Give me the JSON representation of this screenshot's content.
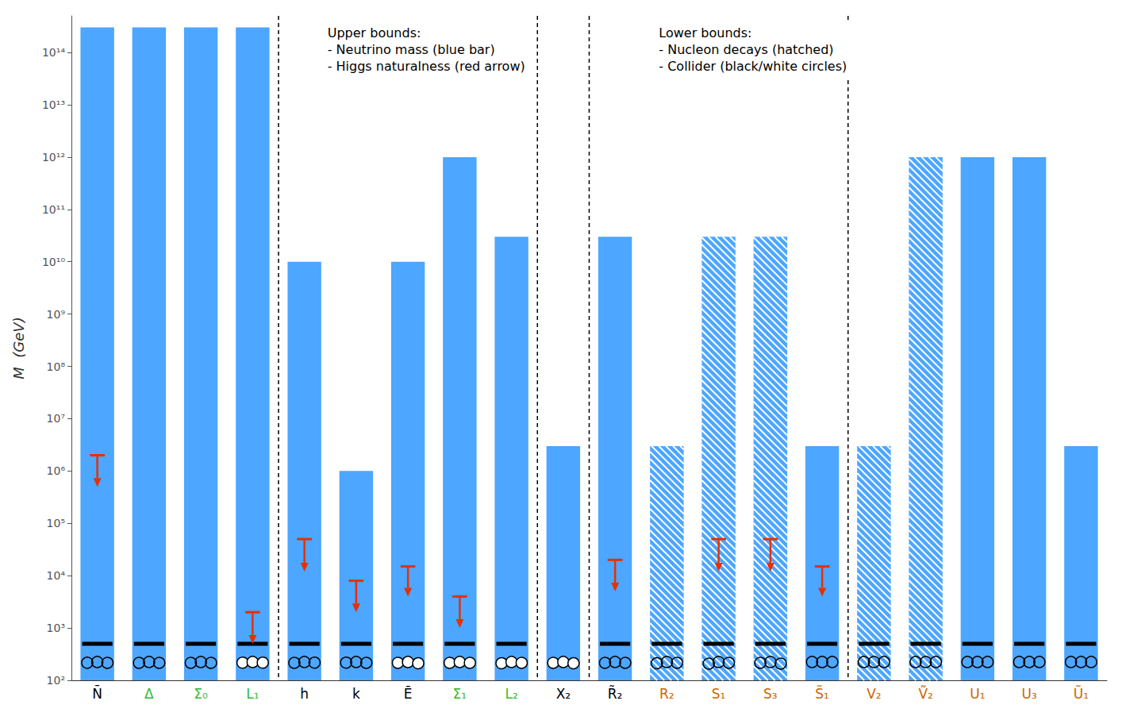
{
  "chart_data": {
    "type": "bar",
    "log": "y",
    "grid": false,
    "ylabel": "M  (GeV)",
    "categories": [
      "N̄",
      "Δ",
      "Σ̄₀",
      "L₁",
      "h",
      "k",
      "Ē",
      "Σ̄₁",
      "L₂",
      "X₂",
      "R̃₂",
      "R₂",
      "S₁",
      "S₃",
      "S̃₁",
      "V₂",
      "Ṽ₂",
      "U₁",
      "U₃",
      "Ũ₁"
    ],
    "label_colors": [
      "black",
      "#33bb33",
      "#33bb33",
      "#33bb33",
      "black",
      "black",
      "black",
      "#33bb33",
      "#33bb33",
      "black",
      "black",
      "#cc6600",
      "#cc6600",
      "#cc6600",
      "#cc6600",
      "#cc6600",
      "#cc6600",
      "#cc6600",
      "#cc6600",
      "#cc6600"
    ],
    "group_sizes": [
      4,
      5,
      1,
      5,
      5
    ],
    "ylim": [
      100,
      500000000000000.0
    ],
    "yticks": [
      {
        "value": 100.0,
        "label": "10²"
      },
      {
        "value": 1000.0,
        "label": "10³"
      },
      {
        "value": 10000.0,
        "label": "10⁴"
      },
      {
        "value": 100000.0,
        "label": "10⁵"
      },
      {
        "value": 1000000.0,
        "label": "10⁶"
      },
      {
        "value": 10000000.0,
        "label": "10⁷"
      },
      {
        "value": 100000000.0,
        "label": "10⁸"
      },
      {
        "value": 1000000000.0,
        "label": "10⁹"
      },
      {
        "value": 10000000000.0,
        "label": "10¹⁰"
      },
      {
        "value": 100000000000.0,
        "label": "10¹¹"
      },
      {
        "value": 1000000000000.0,
        "label": "10¹²"
      },
      {
        "value": 10000000000000.0,
        "label": "10¹³"
      },
      {
        "value": 100000000000000.0,
        "label": "10¹⁴"
      }
    ],
    "series": [
      {
        "type": "bar",
        "color": "#4da6ff",
        "values": [
          300000000000000.0,
          300000000000000.0,
          300000000000000.0,
          300000000000000.0,
          10000000000.0,
          1000000.0,
          10000000000.0,
          1000000000000.0,
          30000000000.0,
          3000000.0,
          30000000000.0,
          3000000.0,
          30000000000.0,
          30000000000.0,
          3000000.0,
          3000000.0,
          1000000000000.0,
          1000000000000.0,
          1000000000000.0,
          3000000.0
        ],
        "hatched": [
          false,
          false,
          false,
          false,
          false,
          false,
          false,
          false,
          false,
          false,
          false,
          true,
          true,
          true,
          false,
          true,
          true,
          false,
          false,
          false
        ]
      },
      {
        "type": "hline",
        "color": "black",
        "values": [
          500,
          500,
          500,
          500,
          500,
          500,
          500,
          500,
          500,
          null,
          500,
          500,
          500,
          500,
          500,
          500,
          500,
          500,
          500,
          500
        ]
      },
      {
        "type": "scatter",
        "marker": "circle",
        "color": "black",
        "colors": [
          "none",
          "none",
          "none",
          "white",
          "none",
          "none",
          "white",
          "white",
          "white",
          "white",
          "none",
          "none",
          "none",
          "none",
          "none",
          "none",
          "none",
          "none",
          "none",
          "none"
        ],
        "values": [
          223.8721138568339,
          223.8721138568339,
          223.8721138568339,
          223.8721138568339,
          223.8721138568339,
          223.8721138568339,
          223.8721138568339,
          223.8721138568339,
          223.8721138568339,
          223.8721138568339,
          223.8721138568339,
          223.8721138568339,
          223.8721138568339,
          223.8721138568339,
          223.8721138568339,
          223.8721138568339,
          223.8721138568339,
          223.8721138568339,
          223.8721138568339,
          223.8721138568339
        ]
      },
      {
        "type": "arrow",
        "color": "#e63000",
        "values": [
          2000000.0,
          null,
          null,
          2000.0,
          50000.0,
          8000.0,
          15000.0,
          4000.0,
          null,
          null,
          20000.0,
          null,
          50000.0,
          50000.0,
          15000.0,
          null,
          null,
          null,
          null,
          null
        ],
        "ends": [
          500000.0,
          null,
          null,
          500.0,
          12000.0,
          2000.0,
          4000.0,
          1000.0,
          null,
          null,
          5000.0,
          null,
          12000.0,
          12000.0,
          4000.0,
          null,
          null,
          null,
          null,
          null
        ]
      }
    ],
    "annotations": [
      "Upper bounds:\n- Neutrino mass (blue bar)\n- Higgs naturalness (red arrow)",
      "Lower bounds:\n- Nucleon decays (hatched)\n- Collider (black/white circles)"
    ]
  }
}
